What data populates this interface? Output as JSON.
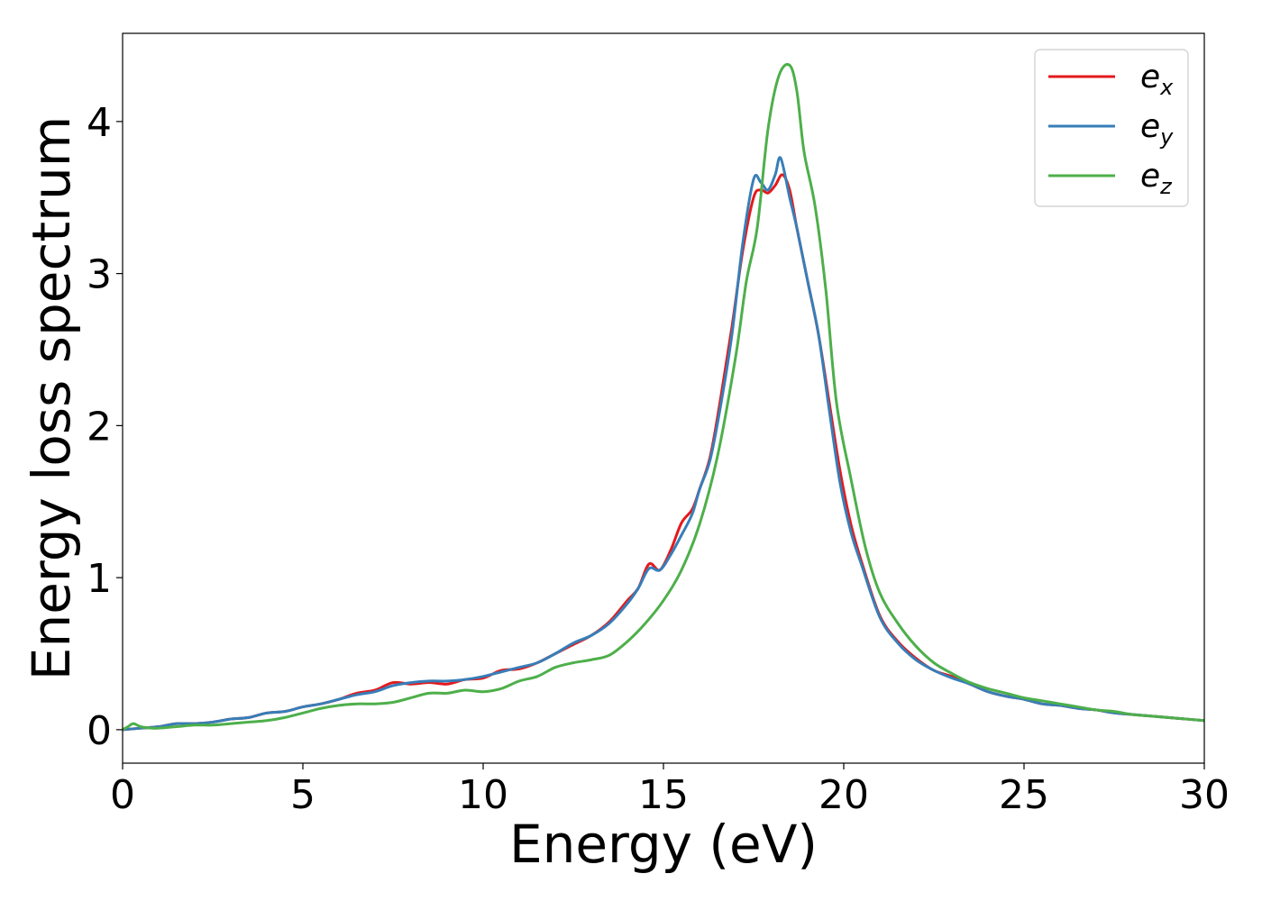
{
  "chart_data": {
    "type": "line",
    "title": "",
    "xlabel": "Energy (eV)",
    "ylabel": "Energy loss spectrum",
    "xlim": [
      0,
      30
    ],
    "ylim": [
      -0.22,
      4.58
    ],
    "xticks": [
      0,
      5,
      10,
      15,
      20,
      25,
      30
    ],
    "xtick_labels": [
      "0",
      "5",
      "10",
      "15",
      "20",
      "25",
      "30"
    ],
    "yticks": [
      0,
      1,
      2,
      3,
      4
    ],
    "ytick_labels": [
      "0",
      "1",
      "2",
      "3",
      "4"
    ],
    "grid": false,
    "legend_position": "top-right",
    "series": [
      {
        "name": "e_x",
        "legend_base": "e",
        "legend_sub": "x",
        "color": "#e41a1c",
        "x": [
          0,
          0.5,
          1,
          1.5,
          2,
          2.5,
          3,
          3.5,
          4,
          4.5,
          5,
          5.5,
          6,
          6.5,
          7,
          7.5,
          8,
          8.5,
          9,
          9.5,
          10,
          10.5,
          11,
          11.5,
          12,
          12.5,
          13,
          13.5,
          14,
          14.3,
          14.6,
          14.9,
          15.2,
          15.5,
          15.8,
          16,
          16.3,
          16.6,
          16.9,
          17.2,
          17.5,
          17.7,
          17.9,
          18.1,
          18.3,
          18.5,
          18.7,
          19,
          19.3,
          19.6,
          19.9,
          20.2,
          20.5,
          21,
          21.5,
          22,
          22.5,
          23,
          23.5,
          24,
          24.5,
          25,
          25.5,
          26,
          26.5,
          27,
          27.5,
          28,
          28.5,
          29,
          29.5,
          30
        ],
        "y": [
          0.0,
          0.01,
          0.02,
          0.04,
          0.04,
          0.05,
          0.07,
          0.08,
          0.11,
          0.12,
          0.15,
          0.17,
          0.2,
          0.24,
          0.26,
          0.31,
          0.3,
          0.31,
          0.3,
          0.33,
          0.34,
          0.39,
          0.4,
          0.44,
          0.5,
          0.56,
          0.62,
          0.71,
          0.85,
          0.93,
          1.09,
          1.05,
          1.18,
          1.36,
          1.45,
          1.58,
          1.8,
          2.2,
          2.65,
          3.15,
          3.5,
          3.55,
          3.53,
          3.58,
          3.65,
          3.55,
          3.3,
          2.95,
          2.6,
          2.15,
          1.7,
          1.35,
          1.1,
          0.75,
          0.58,
          0.47,
          0.39,
          0.35,
          0.3,
          0.25,
          0.22,
          0.2,
          0.17,
          0.16,
          0.14,
          0.13,
          0.11,
          0.1,
          0.09,
          0.08,
          0.07,
          0.06
        ]
      },
      {
        "name": "e_y",
        "legend_base": "e",
        "legend_sub": "y",
        "color": "#377eb8",
        "x": [
          0,
          0.5,
          1,
          1.5,
          2,
          2.5,
          3,
          3.5,
          4,
          4.5,
          5,
          5.5,
          6,
          6.5,
          7,
          7.5,
          8,
          8.5,
          9,
          9.5,
          10,
          10.5,
          11,
          11.5,
          12,
          12.5,
          13,
          13.5,
          14,
          14.3,
          14.6,
          14.9,
          15.2,
          15.5,
          15.8,
          16,
          16.3,
          16.6,
          16.9,
          17.2,
          17.5,
          17.7,
          17.9,
          18.1,
          18.25,
          18.5,
          18.7,
          19,
          19.3,
          19.6,
          19.9,
          20.2,
          20.5,
          21,
          21.5,
          22,
          22.5,
          23,
          23.5,
          24,
          24.5,
          25,
          25.5,
          26,
          26.5,
          27,
          27.5,
          28,
          28.5,
          29,
          29.5,
          30
        ],
        "y": [
          0.0,
          0.01,
          0.02,
          0.04,
          0.04,
          0.05,
          0.07,
          0.08,
          0.11,
          0.12,
          0.15,
          0.17,
          0.2,
          0.23,
          0.25,
          0.29,
          0.31,
          0.32,
          0.32,
          0.33,
          0.35,
          0.38,
          0.41,
          0.44,
          0.5,
          0.57,
          0.62,
          0.7,
          0.83,
          0.93,
          1.06,
          1.05,
          1.15,
          1.28,
          1.42,
          1.58,
          1.78,
          2.15,
          2.6,
          3.2,
          3.62,
          3.6,
          3.55,
          3.65,
          3.76,
          3.5,
          3.3,
          2.95,
          2.6,
          2.1,
          1.62,
          1.3,
          1.08,
          0.74,
          0.57,
          0.46,
          0.39,
          0.34,
          0.3,
          0.25,
          0.22,
          0.2,
          0.17,
          0.16,
          0.14,
          0.13,
          0.11,
          0.1,
          0.09,
          0.08,
          0.07,
          0.06
        ]
      },
      {
        "name": "e_z",
        "legend_base": "e",
        "legend_sub": "z",
        "color": "#4daf4a",
        "x": [
          0,
          0.15,
          0.3,
          0.5,
          0.8,
          1,
          1.5,
          2,
          2.5,
          3,
          3.5,
          4,
          4.5,
          5,
          5.5,
          6,
          6.5,
          7,
          7.5,
          8,
          8.5,
          9,
          9.5,
          10,
          10.5,
          11,
          11.5,
          12,
          12.5,
          13,
          13.5,
          14,
          14.5,
          15,
          15.5,
          16,
          16.5,
          17,
          17.3,
          17.6,
          17.9,
          18.2,
          18.5,
          18.7,
          18.9,
          19.2,
          19.5,
          19.8,
          20.2,
          20.6,
          21,
          21.5,
          22,
          22.5,
          23,
          23.5,
          24,
          24.5,
          25,
          25.5,
          26,
          26.5,
          27,
          27.5,
          28,
          28.5,
          29,
          29.5,
          30
        ],
        "y": [
          0.0,
          0.02,
          0.04,
          0.02,
          0.01,
          0.01,
          0.02,
          0.03,
          0.03,
          0.04,
          0.05,
          0.06,
          0.08,
          0.11,
          0.14,
          0.16,
          0.17,
          0.17,
          0.18,
          0.21,
          0.24,
          0.24,
          0.26,
          0.25,
          0.27,
          0.32,
          0.35,
          0.41,
          0.44,
          0.46,
          0.49,
          0.58,
          0.7,
          0.85,
          1.05,
          1.35,
          1.8,
          2.45,
          2.95,
          3.3,
          3.95,
          4.3,
          4.37,
          4.2,
          3.8,
          3.45,
          2.9,
          2.15,
          1.65,
          1.2,
          0.9,
          0.7,
          0.55,
          0.44,
          0.37,
          0.31,
          0.27,
          0.24,
          0.21,
          0.19,
          0.17,
          0.15,
          0.13,
          0.12,
          0.1,
          0.09,
          0.08,
          0.07,
          0.06
        ]
      }
    ]
  }
}
